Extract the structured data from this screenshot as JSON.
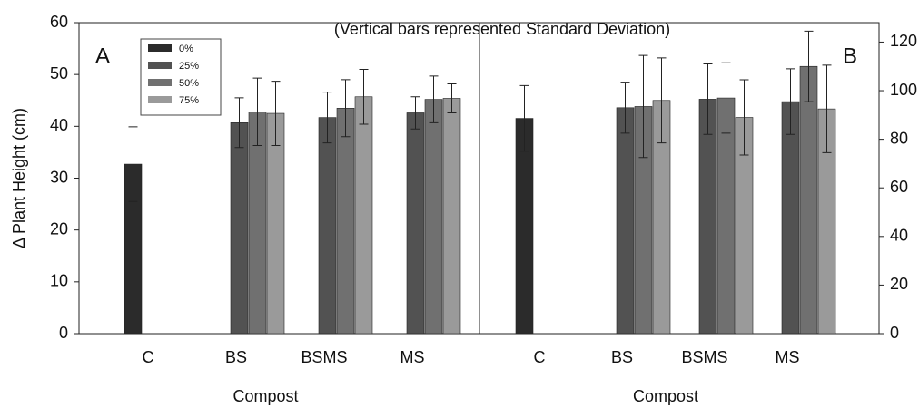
{
  "chart_data": [
    {
      "type": "bar",
      "title": "(Vertical bars represented Standard Deviation)",
      "panel_label": "A",
      "xlabel": "Compost",
      "ylabel": "Δ Plant Height (cm)",
      "categories": [
        "C",
        "BS",
        "BSMS",
        "MS"
      ],
      "series": [
        {
          "name": "0%",
          "color": "#2b2b2b",
          "values": [
            32.7,
            null,
            null,
            null
          ],
          "errors": [
            7.2,
            null,
            null,
            null
          ]
        },
        {
          "name": "25%",
          "color": "#525252",
          "values": [
            null,
            40.7,
            41.7,
            42.6
          ],
          "errors": [
            null,
            4.8,
            4.9,
            3.1
          ]
        },
        {
          "name": "50%",
          "color": "#707070",
          "values": [
            null,
            42.8,
            43.5,
            45.2
          ],
          "errors": [
            null,
            6.5,
            5.5,
            4.5
          ]
        },
        {
          "name": "75%",
          "color": "#9a9a9a",
          "values": [
            null,
            42.5,
            45.7,
            45.4
          ],
          "errors": [
            null,
            6.2,
            5.3,
            2.8
          ]
        }
      ],
      "ylim": [
        0,
        60
      ],
      "yticks": [
        0,
        10,
        20,
        30,
        40,
        50,
        60
      ],
      "legend": "upper left"
    },
    {
      "type": "bar",
      "panel_label": "B",
      "xlabel": "Compost",
      "categories": [
        "C",
        "BS",
        "BSMS",
        "MS"
      ],
      "series": [
        {
          "color": "#2b2b2b",
          "axis": "y2",
          "values": [
            88.6,
            null,
            null,
            null
          ],
          "errors": [
            13.5,
            null,
            null,
            null
          ]
        },
        {
          "color": "#525252",
          "axis": "y2",
          "values": [
            null,
            93,
            96.5,
            95.5
          ],
          "errors": [
            null,
            10.5,
            14.5,
            13.5
          ]
        },
        {
          "color": "#707070",
          "axis": "y2",
          "values": [
            null,
            93.5,
            97,
            110
          ],
          "errors": [
            null,
            21,
            14.5,
            14.5
          ]
        },
        {
          "color": "#9a9a9a",
          "axis": "y2",
          "values": [
            null,
            96,
            89,
            92.5
          ],
          "errors": [
            null,
            17.5,
            15.5,
            18
          ]
        }
      ],
      "y2lim": [
        0,
        128
      ],
      "y2ticks": [
        0,
        20,
        40,
        60,
        80,
        100,
        120
      ]
    }
  ]
}
